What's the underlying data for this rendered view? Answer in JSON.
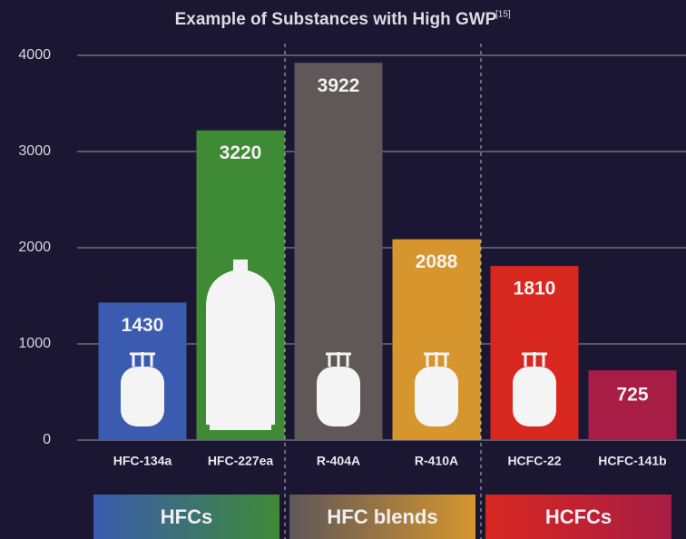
{
  "chart_data": {
    "type": "bar",
    "title": "Example of Substances with High GWP",
    "title_note": "[15]",
    "categories": [
      "HFC-134a",
      "HFC-227ea",
      "R-404A",
      "R-410A",
      "HCFC-22",
      "HCFC-141b"
    ],
    "values": [
      1430,
      3220,
      3922,
      2088,
      1810,
      725
    ],
    "colors": [
      "#3a5bb0",
      "#3f8a35",
      "#5f5758",
      "#d6962d",
      "#d8271f",
      "#a81d45"
    ],
    "groups": [
      "HFCs",
      "HFC blends",
      "HCFCs"
    ],
    "ylim": [
      0,
      4000
    ],
    "yticks": [
      0,
      1000,
      2000,
      3000,
      4000
    ],
    "grid": true
  }
}
